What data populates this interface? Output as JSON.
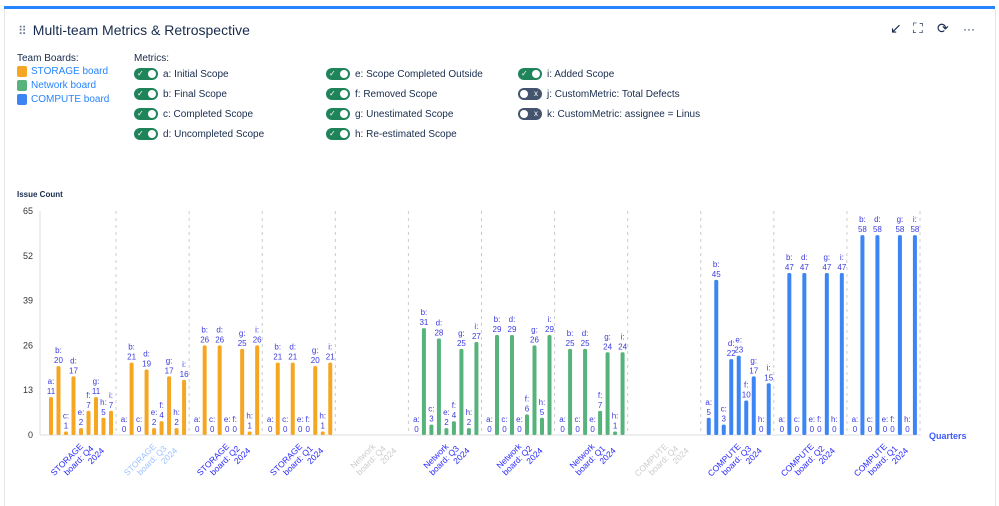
{
  "title": "Multi-team Metrics & Retrospective",
  "controls": {
    "collapse": "↙",
    "fullscreen": "⛶",
    "refresh": "⟳",
    "more": "···"
  },
  "legend": {
    "teams_label": "Team Boards:",
    "teams": [
      {
        "name": "STORAGE board",
        "color": "#f5a623"
      },
      {
        "name": "Network board",
        "color": "#57b37c"
      },
      {
        "name": "COMPUTE board",
        "color": "#3d85f5"
      }
    ],
    "metrics_label": "Metrics:",
    "metrics": [
      {
        "label": "a: Initial Scope",
        "on": true
      },
      {
        "label": "b: Final Scope",
        "on": true
      },
      {
        "label": "c: Completed Scope",
        "on": true
      },
      {
        "label": "d: Uncompleted Scope",
        "on": true
      },
      {
        "label": "e: Scope Completed Outside",
        "on": true
      },
      {
        "label": "f: Removed Scope",
        "on": true
      },
      {
        "label": "g: Unestimated Scope",
        "on": true
      },
      {
        "label": "h: Re-estimated Scope",
        "on": true
      },
      {
        "label": "i: Added Scope",
        "on": true
      },
      {
        "label": "j: CustomMetric: Total Defects",
        "on": false
      },
      {
        "label": "k: CustomMetric: assignee = Linus",
        "on": false
      }
    ]
  },
  "chart_data": {
    "type": "bar",
    "ylabel": "Issue Count",
    "xlabel": "Quarters",
    "ylim": [
      0,
      65
    ],
    "yticks": [
      0,
      13,
      26,
      39,
      52,
      65
    ],
    "metric_keys": [
      "a",
      "b",
      "c",
      "d",
      "e",
      "f",
      "g",
      "h",
      "i"
    ],
    "groups": [
      {
        "label": "STORAGE board: Q4 2024",
        "team": 0,
        "values": [
          11,
          20,
          1,
          17,
          2,
          7,
          11,
          5,
          7
        ]
      },
      {
        "label": "STORAGE board: Q3 2024",
        "team": 0,
        "values": [
          0,
          21,
          0,
          19,
          2,
          4,
          17,
          2,
          16
        ],
        "label_color": "#9ec3ff"
      },
      {
        "label": "STORAGE board: Q2 2024",
        "team": 0,
        "values": [
          0,
          26,
          0,
          26,
          0,
          0,
          25,
          1,
          26
        ]
      },
      {
        "label": "STORAGE board: Q1 2024",
        "team": 0,
        "values": [
          0,
          21,
          0,
          21,
          0,
          0,
          20,
          1,
          21
        ]
      },
      {
        "label": "Network board: Q4 2024",
        "team": 1,
        "values": null,
        "label_color": "#cccccc"
      },
      {
        "label": "Network board: Q3 2024",
        "team": 1,
        "values": [
          0,
          31,
          3,
          28,
          2,
          4,
          25,
          2,
          27
        ]
      },
      {
        "label": "Network board: Q2 2024",
        "team": 1,
        "values": [
          0,
          29,
          0,
          29,
          0,
          6,
          26,
          5,
          29
        ]
      },
      {
        "label": "Network board: Q1 2024",
        "team": 1,
        "values": [
          0,
          25,
          0,
          25,
          0,
          7,
          24,
          1,
          24
        ]
      },
      {
        "label": "COMPUTE board: Q4 2024",
        "team": 2,
        "values": null,
        "label_color": "#cccccc"
      },
      {
        "label": "COMPUTE board: Q3 2024",
        "team": 2,
        "values": [
          5,
          45,
          3,
          22,
          23,
          10,
          17,
          0,
          15
        ]
      },
      {
        "label": "COMPUTE board: Q2 2024",
        "team": 2,
        "values": [
          0,
          47,
          0,
          47,
          0,
          0,
          47,
          0,
          47
        ]
      },
      {
        "label": "COMPUTE board: Q1 2024",
        "team": 2,
        "values": [
          0,
          58,
          0,
          58,
          0,
          0,
          58,
          0,
          58
        ]
      }
    ]
  }
}
